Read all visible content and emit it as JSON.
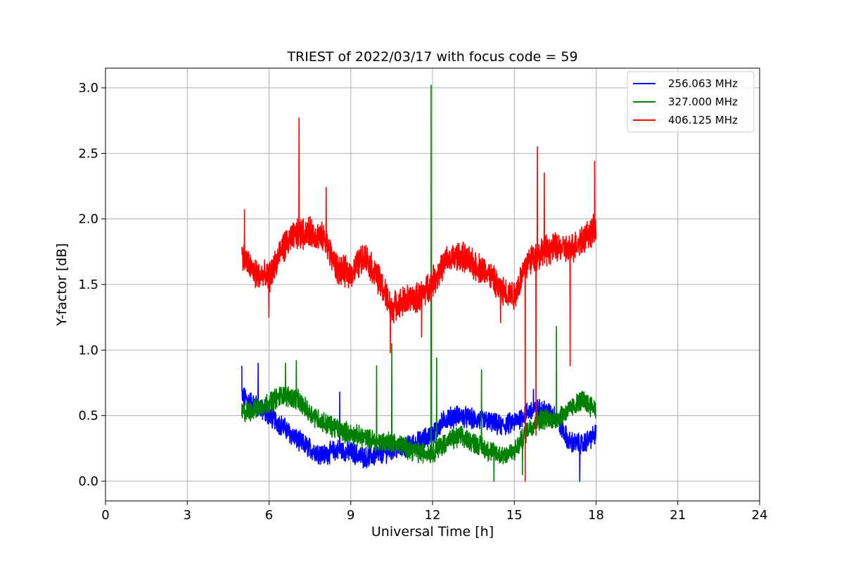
{
  "chart_data": {
    "type": "line",
    "title": "TRIEST of 2022/03/17 with focus code = 59",
    "xlabel": "Universal Time [h]",
    "ylabel": "Y-factor [dB]",
    "xlim": [
      0,
      24
    ],
    "ylim": [
      -0.15,
      3.15
    ],
    "xticks": [
      0,
      3,
      6,
      9,
      12,
      15,
      18,
      21,
      24
    ],
    "xtick_labels": [
      "0",
      "3",
      "6",
      "9",
      "12",
      "15",
      "18",
      "21",
      "24"
    ],
    "yticks": [
      0.0,
      0.5,
      1.0,
      1.5,
      2.0,
      2.5,
      3.0
    ],
    "ytick_labels": [
      "0.0",
      "0.5",
      "1.0",
      "1.5",
      "2.0",
      "2.5",
      "3.0"
    ],
    "grid": true,
    "legend_position": "top-right",
    "series": [
      {
        "name": "256.063 MHz",
        "color": "#0000ff",
        "x": [
          5.0,
          5.5,
          6.0,
          6.5,
          7.0,
          7.5,
          8.0,
          8.5,
          9.0,
          9.5,
          10.0,
          10.5,
          11.0,
          11.5,
          12.0,
          12.5,
          13.0,
          13.5,
          14.0,
          14.5,
          15.0,
          15.5,
          16.0,
          16.5,
          17.0,
          17.5,
          18.0
        ],
        "y": [
          0.65,
          0.58,
          0.5,
          0.42,
          0.32,
          0.25,
          0.2,
          0.24,
          0.22,
          0.18,
          0.2,
          0.24,
          0.26,
          0.3,
          0.36,
          0.48,
          0.5,
          0.47,
          0.46,
          0.42,
          0.45,
          0.53,
          0.55,
          0.5,
          0.3,
          0.28,
          0.36
        ],
        "noise": 0.07,
        "spikes": [
          {
            "x": 5.0,
            "y": 0.88
          },
          {
            "x": 5.6,
            "y": 0.9
          },
          {
            "x": 8.6,
            "y": 0.68
          },
          {
            "x": 15.7,
            "y": 0.7
          },
          {
            "x": 17.4,
            "y": 0.0
          }
        ]
      },
      {
        "name": "327.000 MHz",
        "color": "#008000",
        "x": [
          5.0,
          5.5,
          6.0,
          6.5,
          7.0,
          7.5,
          8.0,
          8.5,
          9.0,
          9.5,
          10.0,
          10.5,
          11.0,
          11.5,
          12.0,
          12.5,
          13.0,
          13.5,
          14.0,
          14.5,
          15.0,
          15.5,
          16.0,
          16.5,
          17.0,
          17.5,
          18.0
        ],
        "y": [
          0.52,
          0.55,
          0.6,
          0.66,
          0.63,
          0.52,
          0.45,
          0.4,
          0.36,
          0.33,
          0.3,
          0.3,
          0.26,
          0.22,
          0.22,
          0.3,
          0.34,
          0.3,
          0.24,
          0.2,
          0.22,
          0.4,
          0.48,
          0.47,
          0.54,
          0.62,
          0.55
        ],
        "noise": 0.07,
        "spikes": [
          {
            "x": 6.6,
            "y": 0.9
          },
          {
            "x": 7.0,
            "y": 0.92
          },
          {
            "x": 9.95,
            "y": 0.88
          },
          {
            "x": 10.5,
            "y": 1.05
          },
          {
            "x": 11.95,
            "y": 3.02
          },
          {
            "x": 12.15,
            "y": 0.94
          },
          {
            "x": 13.8,
            "y": 0.85
          },
          {
            "x": 14.25,
            "y": 0.0
          },
          {
            "x": 15.3,
            "y": 0.05
          },
          {
            "x": 16.55,
            "y": 1.18
          }
        ]
      },
      {
        "name": "406.125 MHz",
        "color": "#ff0000",
        "x": [
          5.0,
          5.5,
          6.0,
          6.5,
          7.0,
          7.5,
          8.0,
          8.5,
          9.0,
          9.5,
          10.0,
          10.5,
          11.0,
          11.5,
          12.0,
          12.5,
          13.0,
          13.5,
          14.0,
          14.5,
          15.0,
          15.5,
          16.0,
          16.5,
          17.0,
          17.5,
          18.0
        ],
        "y": [
          1.72,
          1.58,
          1.55,
          1.78,
          1.88,
          1.9,
          1.85,
          1.62,
          1.58,
          1.72,
          1.55,
          1.32,
          1.38,
          1.4,
          1.52,
          1.68,
          1.72,
          1.65,
          1.6,
          1.45,
          1.42,
          1.68,
          1.75,
          1.78,
          1.76,
          1.85,
          1.92
        ],
        "noise": 0.1,
        "spikes": [
          {
            "x": 5.1,
            "y": 2.07
          },
          {
            "x": 6.0,
            "y": 1.25
          },
          {
            "x": 7.1,
            "y": 2.77
          },
          {
            "x": 8.1,
            "y": 2.24
          },
          {
            "x": 10.45,
            "y": 0.98
          },
          {
            "x": 11.6,
            "y": 1.1
          },
          {
            "x": 14.5,
            "y": 1.21
          },
          {
            "x": 15.4,
            "y": 0.0
          },
          {
            "x": 15.8,
            "y": 0.35
          },
          {
            "x": 15.85,
            "y": 2.55
          },
          {
            "x": 16.1,
            "y": 2.35
          },
          {
            "x": 17.05,
            "y": 0.88
          },
          {
            "x": 17.95,
            "y": 2.44
          }
        ]
      }
    ]
  }
}
